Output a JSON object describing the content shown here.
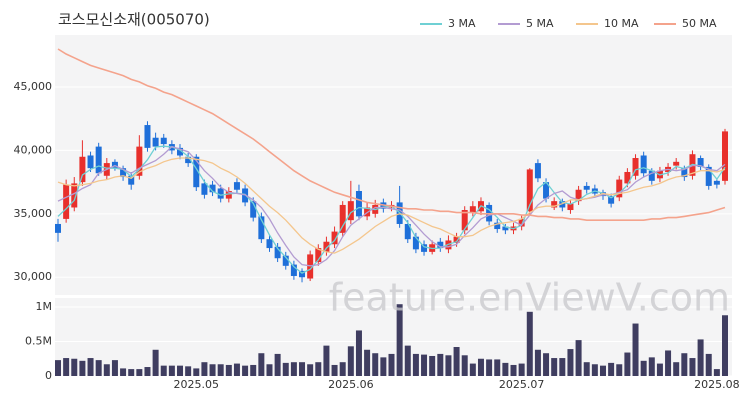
{
  "watermark": "feature.enViewV.com",
  "chart_data": [
    {
      "type": "candlestick",
      "title": "코스모신소재(005070)",
      "open": [
        34200,
        34600,
        35500,
        37500,
        39600,
        40300,
        38000,
        39100,
        38600,
        38000,
        38000,
        42000,
        41000,
        41000,
        40500,
        40200,
        39500,
        39500,
        37400,
        37300,
        37000,
        36200,
        37500,
        37000,
        36000,
        34800,
        33000,
        32400,
        31700,
        31000,
        30500,
        29900,
        31200,
        32000,
        32600,
        33500,
        34500,
        36800,
        34800,
        35000,
        35900,
        35500,
        35900,
        34200,
        33200,
        32600,
        32000,
        32800,
        32200,
        32700,
        33700,
        35100,
        35200,
        35700,
        34300,
        34000,
        33700,
        34000,
        35200,
        39000,
        37500,
        35500,
        36000,
        35300,
        36000,
        37200,
        37000,
        36700,
        36400,
        36300,
        37400,
        38000,
        39600,
        38400,
        37800,
        38300,
        38800,
        38600,
        38000,
        39400,
        38700,
        37600,
        37600
      ],
      "high": [
        34600,
        37700,
        37900,
        40800,
        39900,
        40600,
        39400,
        39300,
        38800,
        38300,
        41200,
        42300,
        41400,
        41300,
        40800,
        40500,
        39800,
        39700,
        37700,
        37600,
        37300,
        37100,
        37800,
        37300,
        36300,
        35100,
        33300,
        32700,
        32000,
        31300,
        30700,
        32100,
        32600,
        33200,
        34000,
        36000,
        37600,
        37300,
        35900,
        36100,
        36200,
        36000,
        37200,
        34500,
        33500,
        32900,
        32900,
        33100,
        33300,
        33500,
        35600,
        36000,
        36300,
        35900,
        34600,
        34200,
        34300,
        34900,
        38600,
        39300,
        37800,
        36300,
        36200,
        36100,
        37200,
        37500,
        37300,
        36900,
        36600,
        38000,
        38600,
        39700,
        39900,
        38600,
        38700,
        39000,
        39400,
        38800,
        40000,
        39600,
        38900,
        37800,
        41700
      ],
      "low": [
        32800,
        34300,
        35200,
        37200,
        38300,
        38000,
        37700,
        38400,
        37600,
        36900,
        37700,
        39900,
        40000,
        40200,
        39700,
        39300,
        38700,
        36800,
        36200,
        36400,
        35900,
        35900,
        36600,
        35600,
        34400,
        32700,
        32000,
        31200,
        30600,
        29800,
        29600,
        29700,
        30900,
        31700,
        32300,
        33200,
        34200,
        34500,
        34500,
        34700,
        35100,
        35200,
        33900,
        32700,
        31900,
        31700,
        31800,
        32000,
        31900,
        32400,
        33400,
        34800,
        34900,
        34100,
        33500,
        33400,
        33400,
        33700,
        34900,
        37500,
        35900,
        35300,
        35200,
        35000,
        35700,
        36600,
        36300,
        36100,
        35500,
        36000,
        37100,
        37700,
        37900,
        37300,
        37500,
        38000,
        38500,
        37600,
        37700,
        38400,
        36900,
        37000,
        37300
      ],
      "close": [
        33500,
        37300,
        37400,
        39500,
        38600,
        38200,
        39000,
        38600,
        37900,
        37300,
        40300,
        40200,
        40300,
        40500,
        40000,
        39600,
        39000,
        37100,
        36500,
        36700,
        36200,
        36800,
        36900,
        35900,
        34700,
        33000,
        32300,
        31500,
        30900,
        30100,
        30000,
        31800,
        32300,
        32800,
        33600,
        35700,
        36000,
        34800,
        35500,
        35700,
        35400,
        35700,
        34200,
        33000,
        32200,
        32000,
        32600,
        32300,
        32900,
        33200,
        35300,
        35600,
        36000,
        34400,
        33800,
        33700,
        34000,
        34600,
        38500,
        37800,
        36200,
        36000,
        35500,
        35800,
        36900,
        36900,
        36600,
        36400,
        35800,
        37700,
        38300,
        39400,
        38200,
        37600,
        38400,
        38700,
        39100,
        37900,
        39700,
        38700,
        37200,
        37300,
        41500
      ],
      "up_color": "#e8302c",
      "down_color": "#1e6fd9",
      "series": [
        {
          "name": "3 MA",
          "color": "#6fd0d4",
          "values": [
            34800,
            35400,
            36070,
            38070,
            38500,
            38770,
            38600,
            38600,
            38500,
            37930,
            38500,
            39270,
            40270,
            40330,
            40270,
            40030,
            39530,
            38570,
            37530,
            36770,
            36470,
            36570,
            36630,
            36530,
            35830,
            34530,
            33330,
            32270,
            31570,
            30830,
            30330,
            30630,
            31370,
            32300,
            32900,
            34030,
            35100,
            35500,
            35430,
            35330,
            35530,
            35600,
            35100,
            34300,
            33130,
            32400,
            32270,
            32300,
            32600,
            32800,
            33800,
            34700,
            35630,
            35330,
            34730,
            33970,
            33830,
            34100,
            35700,
            36970,
            37500,
            36670,
            35900,
            35770,
            36070,
            36530,
            36800,
            36630,
            36270,
            36630,
            37270,
            38470,
            38630,
            38400,
            38070,
            38230,
            38730,
            38570,
            38900,
            38770,
            38530,
            37730,
            38670
          ]
        },
        {
          "name": "5 MA",
          "color": "#b39cd2",
          "values": [
            36000,
            36300,
            36600,
            37000,
            37300,
            38200,
            38500,
            38800,
            38500,
            38200,
            38600,
            38900,
            39200,
            39700,
            40300,
            40100,
            39900,
            39200,
            38400,
            37800,
            37100,
            36700,
            36600,
            36500,
            36100,
            35500,
            34600,
            33500,
            32500,
            31600,
            31000,
            30900,
            31000,
            31400,
            32100,
            33200,
            34100,
            34600,
            35100,
            35500,
            35500,
            35400,
            35300,
            34800,
            34100,
            33400,
            32800,
            32400,
            32400,
            32600,
            33300,
            33900,
            34600,
            34900,
            35000,
            34700,
            34400,
            34100,
            34900,
            35700,
            36200,
            36600,
            36800,
            36300,
            36100,
            36200,
            36300,
            36500,
            36500,
            36700,
            36900,
            37500,
            37900,
            38200,
            38400,
            38500,
            38400,
            38500,
            38800,
            38800,
            38500,
            38400,
            38900
          ]
        },
        {
          "name": "10 MA",
          "color": "#f4c68d",
          "values": [
            37500,
            37300,
            37200,
            37300,
            37400,
            37600,
            37700,
            37900,
            38000,
            37800,
            38300,
            38600,
            38800,
            39100,
            39300,
            39400,
            39400,
            39300,
            39200,
            39000,
            38600,
            38300,
            37900,
            37400,
            36800,
            36200,
            35600,
            35100,
            34500,
            33800,
            33100,
            32600,
            32200,
            32000,
            31900,
            32200,
            32600,
            33000,
            33500,
            34000,
            34400,
            34800,
            35000,
            34900,
            34600,
            34300,
            34000,
            33800,
            33500,
            33200,
            33200,
            33300,
            33700,
            34000,
            34200,
            34300,
            34400,
            34600,
            35100,
            35500,
            35600,
            35600,
            35800,
            36100,
            36100,
            36200,
            36400,
            36600,
            36500,
            36600,
            36700,
            36900,
            37100,
            37200,
            37400,
            37700,
            37900,
            38000,
            38200,
            38400,
            38400,
            38300,
            38500
          ]
        },
        {
          "name": "50 MA",
          "color": "#f4a38c",
          "values": [
            48000,
            47600,
            47300,
            47000,
            46700,
            46500,
            46300,
            46100,
            45900,
            45600,
            45400,
            45100,
            44900,
            44600,
            44400,
            44100,
            43800,
            43500,
            43200,
            42900,
            42500,
            42100,
            41700,
            41300,
            40900,
            40400,
            39900,
            39400,
            38900,
            38400,
            38000,
            37600,
            37300,
            37000,
            36700,
            36500,
            36300,
            36100,
            35900,
            35800,
            35700,
            35600,
            35500,
            35400,
            35400,
            35300,
            35300,
            35200,
            35200,
            35100,
            35100,
            35100,
            35000,
            35000,
            35000,
            35000,
            35000,
            34900,
            34900,
            34800,
            34800,
            34700,
            34700,
            34600,
            34600,
            34500,
            34500,
            34500,
            34500,
            34500,
            34500,
            34500,
            34500,
            34600,
            34600,
            34700,
            34700,
            34800,
            34900,
            35000,
            35100,
            35300,
            35500
          ]
        }
      ],
      "ylim": [
        28600,
        49100
      ],
      "yticks": [
        {
          "value": 30000,
          "label": "30,000"
        },
        {
          "value": 35000,
          "label": "35,000"
        },
        {
          "value": 40000,
          "label": "40,000"
        },
        {
          "value": 45000,
          "label": "45,000"
        }
      ],
      "grid": true,
      "legend": "top-right"
    },
    {
      "type": "bar",
      "color": "#3f3d60",
      "categories": [
        null,
        null,
        null,
        null,
        null,
        null,
        null,
        null,
        null,
        null,
        null,
        null,
        null,
        null,
        null,
        null,
        null,
        "2025.05",
        null,
        null,
        null,
        null,
        null,
        null,
        null,
        null,
        null,
        null,
        null,
        null,
        null,
        null,
        null,
        null,
        null,
        null,
        "2025.06",
        null,
        null,
        null,
        null,
        null,
        null,
        null,
        null,
        null,
        null,
        null,
        null,
        null,
        null,
        null,
        null,
        null,
        null,
        null,
        null,
        "2025.07",
        null,
        null,
        null,
        null,
        null,
        null,
        null,
        null,
        null,
        null,
        null,
        null,
        null,
        null,
        null,
        null,
        null,
        null,
        null,
        null,
        null,
        null,
        null,
        "2025.08",
        null
      ],
      "values": [
        230000,
        260000,
        250000,
        220000,
        260000,
        230000,
        170000,
        230000,
        110000,
        100000,
        100000,
        130000,
        380000,
        150000,
        150000,
        150000,
        140000,
        110000,
        200000,
        170000,
        170000,
        160000,
        180000,
        150000,
        160000,
        330000,
        170000,
        320000,
        190000,
        200000,
        200000,
        170000,
        200000,
        440000,
        160000,
        200000,
        430000,
        660000,
        380000,
        330000,
        270000,
        320000,
        1040000,
        440000,
        320000,
        310000,
        290000,
        320000,
        300000,
        420000,
        300000,
        180000,
        250000,
        240000,
        240000,
        190000,
        160000,
        180000,
        930000,
        380000,
        330000,
        260000,
        260000,
        390000,
        520000,
        200000,
        170000,
        150000,
        190000,
        170000,
        340000,
        760000,
        220000,
        270000,
        180000,
        370000,
        200000,
        330000,
        260000,
        530000,
        320000,
        100000,
        880000
      ],
      "ylim": [
        0,
        1130000
      ],
      "yticks": [
        0,
        {
          "value": 500000,
          "label": "0.5M"
        },
        {
          "value": 1000000,
          "label": "1M"
        }
      ],
      "grid": true
    }
  ]
}
